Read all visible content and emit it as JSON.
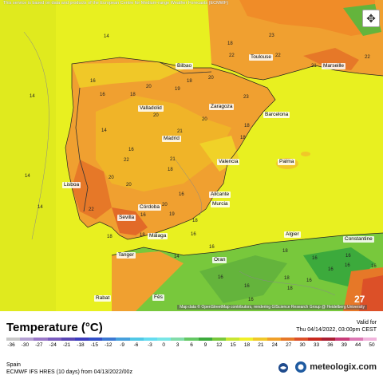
{
  "map": {
    "attribution_top": "This service is based on data and products of the European Centre for Medium-range Weather Forecasts (ECMWF)",
    "attribution_bottom": "Map data © OpenStreetMap contributors, rendering GIScience Research Group @ Heidelberg University",
    "zoom_icon": "cursor-icon",
    "cities": [
      {
        "name": "Bilbao"
      },
      {
        "name": "Toulouse"
      },
      {
        "name": "Marseille"
      },
      {
        "name": "Valladolid"
      },
      {
        "name": "Zaragoza"
      },
      {
        "name": "Barcelona"
      },
      {
        "name": "Madrid"
      },
      {
        "name": "Palma"
      },
      {
        "name": "Lisboa"
      },
      {
        "name": "Valencia"
      },
      {
        "name": "Alicante"
      },
      {
        "name": "Córdoba"
      },
      {
        "name": "Murcia"
      },
      {
        "name": "Sevilla"
      },
      {
        "name": "Málaga"
      },
      {
        "name": "Algier"
      },
      {
        "name": "Tanger"
      },
      {
        "name": "Oran"
      },
      {
        "name": "Fès"
      },
      {
        "name": "Rabat"
      },
      {
        "name": "Constantine"
      }
    ],
    "temp_labels": [
      {
        "t": "14"
      },
      {
        "t": "16"
      },
      {
        "t": "20"
      },
      {
        "t": "23"
      },
      {
        "t": "22"
      },
      {
        "t": "22"
      },
      {
        "t": "20"
      },
      {
        "t": "18"
      },
      {
        "t": "16"
      },
      {
        "t": "18"
      },
      {
        "t": "19"
      },
      {
        "t": "20"
      },
      {
        "t": "14"
      },
      {
        "t": "21"
      },
      {
        "t": "20"
      },
      {
        "t": "18"
      },
      {
        "t": "18"
      },
      {
        "t": "16"
      },
      {
        "t": "22"
      },
      {
        "t": "21"
      },
      {
        "t": "14"
      },
      {
        "t": "20"
      },
      {
        "t": "18"
      },
      {
        "t": "14"
      },
      {
        "t": "22"
      },
      {
        "t": "20"
      },
      {
        "t": "16"
      },
      {
        "t": "20"
      },
      {
        "t": "16"
      },
      {
        "t": "18"
      },
      {
        "t": "18"
      },
      {
        "t": "19"
      },
      {
        "t": "18"
      },
      {
        "t": "16"
      },
      {
        "t": "14"
      },
      {
        "t": "16"
      },
      {
        "t": "18"
      },
      {
        "t": "16"
      },
      {
        "t": "16"
      },
      {
        "t": "16"
      },
      {
        "t": "18"
      },
      {
        "t": "16"
      },
      {
        "t": "16"
      },
      {
        "t": "16"
      },
      {
        "t": "16"
      },
      {
        "t": "18"
      },
      {
        "t": "16"
      },
      {
        "t": "16"
      },
      {
        "t": "23"
      },
      {
        "t": "21"
      },
      {
        "t": "22"
      },
      {
        "t": "14"
      },
      {
        "t": "18"
      }
    ],
    "max_label": "27"
  },
  "legend": {
    "title": "Temperature (°C)",
    "valid_label": "Valid for",
    "valid_time": "Thu 04/14/2022, 03:00pm CEST",
    "ticks": [
      "-36",
      "-30",
      "-27",
      "-24",
      "-21",
      "-18",
      "-15",
      "-12",
      "-9",
      "-6",
      "-3",
      "0",
      "3",
      "6",
      "9",
      "12",
      "15",
      "18",
      "21",
      "24",
      "27",
      "30",
      "33",
      "36",
      "39",
      "44",
      "50"
    ],
    "colors": [
      "#c8c8c8",
      "#b4a0d2",
      "#9a78c8",
      "#7a5cbe",
      "#5a46b4",
      "#3c3cbe",
      "#3250c8",
      "#3c78d2",
      "#46a0dc",
      "#50c8e6",
      "#64dcf0",
      "#78e6e6",
      "#82dcaa",
      "#64c864",
      "#3caa3c",
      "#78c83c",
      "#c8e632",
      "#f0f028",
      "#f0c828",
      "#f0a028",
      "#e67828",
      "#dc5028",
      "#c8281e",
      "#aa1e32",
      "#c83c78",
      "#dc78b4",
      "#f0b4dc"
    ],
    "region": "Spain",
    "model": "ECMWF IFS HRES (10 days) from 04/13/2022/00z",
    "brand": "meteologix.com",
    "brand_icon": "meteologix-logo-icon",
    "ecmwf_icon": "ecmwf-logo-icon"
  }
}
